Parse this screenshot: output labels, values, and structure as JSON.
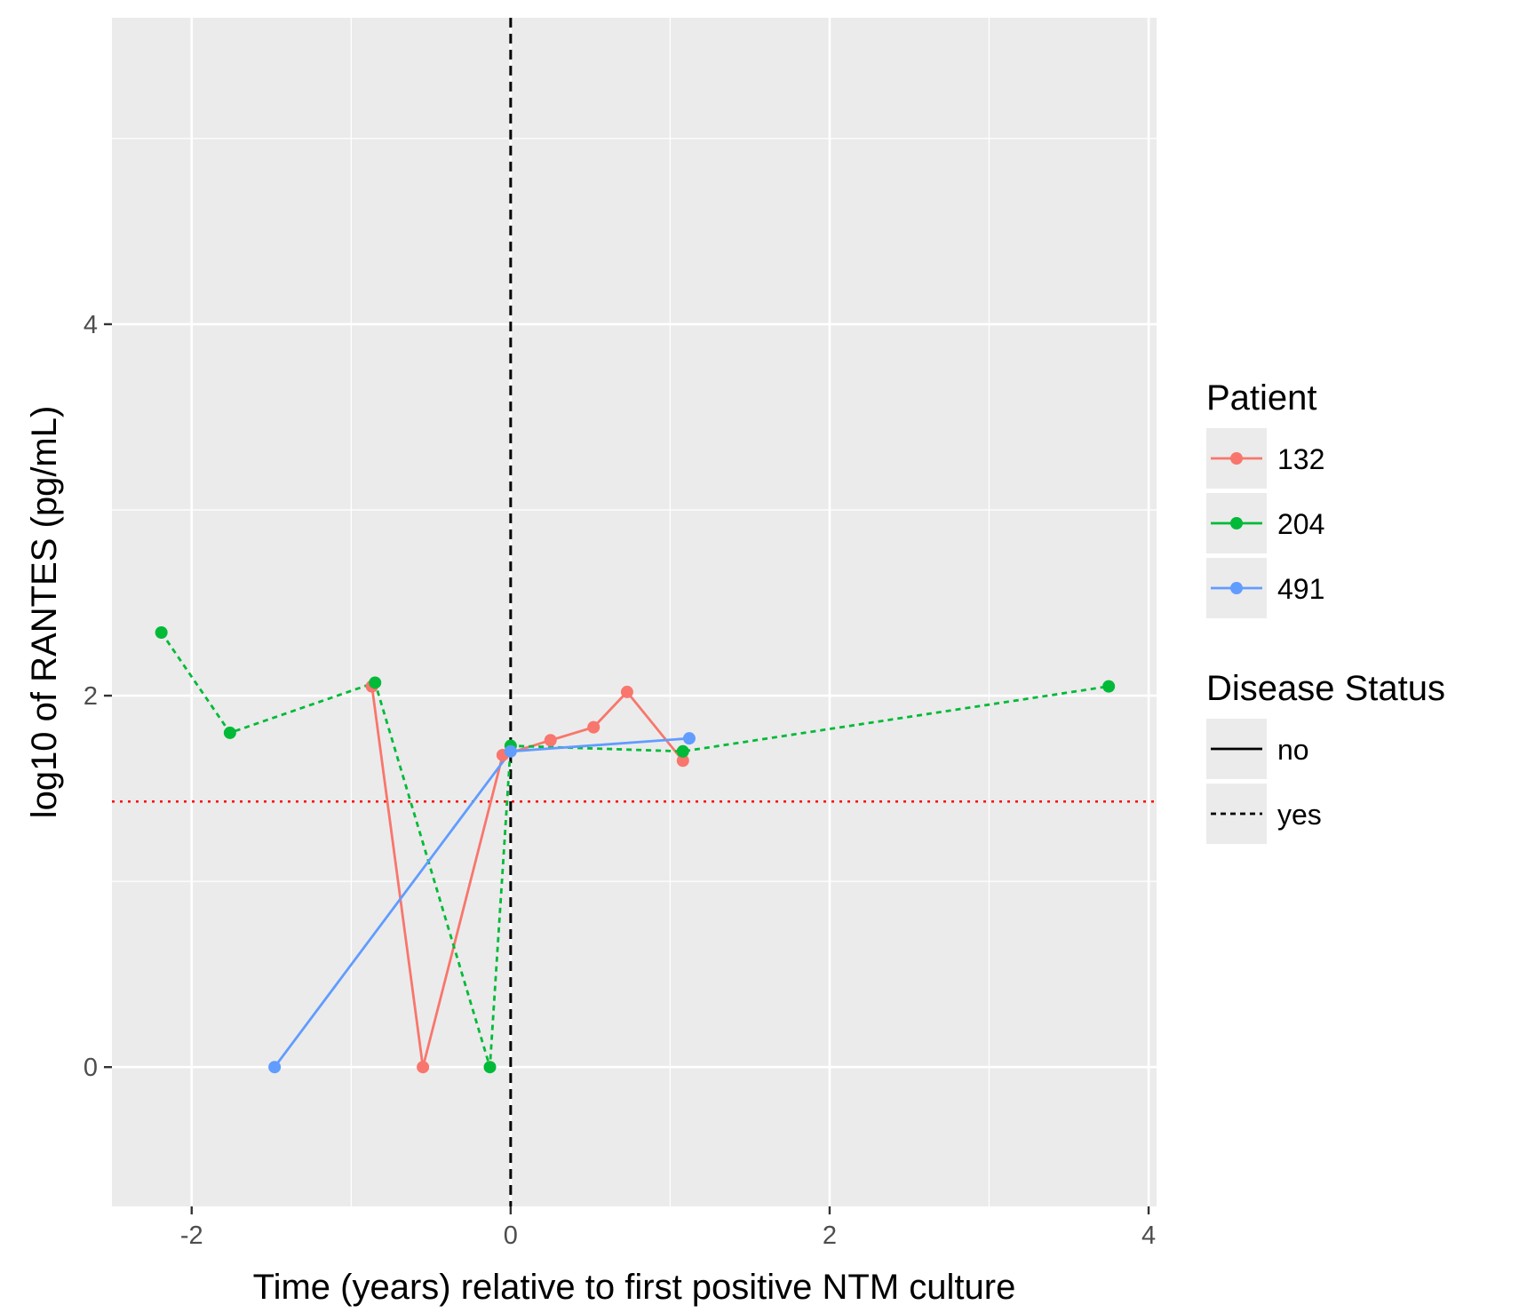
{
  "chart_data": {
    "type": "line",
    "title": "",
    "xlabel": "Time (years) relative to first positive NTM culture",
    "ylabel": "log10 of RANTES (pg/mL)",
    "xlim": [
      -2.5,
      4.05
    ],
    "ylim": [
      -0.75,
      5.65
    ],
    "x_ticks": [
      -2,
      0,
      2,
      4
    ],
    "x_tick_labels": [
      "-2",
      "0",
      "2",
      "4"
    ],
    "y_ticks": [
      0,
      2,
      4
    ],
    "y_tick_labels": [
      "0",
      "2",
      "4"
    ],
    "x_minor_grid": [
      -1,
      1,
      3
    ],
    "y_minor_grid": [
      1,
      3,
      5
    ],
    "grid": true,
    "panel_background": "#ebebeb",
    "vline": {
      "x": 0,
      "color": "#000000",
      "style": "dashed"
    },
    "hline": {
      "y": 1.43,
      "color": "#ff0000",
      "style": "dotted"
    },
    "series": [
      {
        "name": "132",
        "color": "#F8766D",
        "disease_status": "no",
        "linestyle": "solid",
        "x": [
          -0.87,
          -0.55,
          -0.05,
          0.25,
          0.52,
          0.73,
          1.08
        ],
        "y": [
          2.05,
          0.0,
          1.68,
          1.76,
          1.83,
          2.02,
          1.65
        ]
      },
      {
        "name": "204",
        "color": "#00BA38",
        "disease_status": "yes",
        "linestyle": "dotted",
        "x": [
          -2.19,
          -1.76,
          -0.85,
          -0.13,
          0.0,
          1.08,
          3.75
        ],
        "y": [
          2.34,
          1.8,
          2.07,
          0.0,
          1.73,
          1.7,
          2.05
        ]
      },
      {
        "name": "491",
        "color": "#619CFF",
        "disease_status": "no",
        "linestyle": "solid",
        "x": [
          -1.48,
          0.0,
          1.12
        ],
        "y": [
          0.0,
          1.7,
          1.77
        ]
      }
    ],
    "legend": {
      "placement": "right",
      "patient_title": "Patient",
      "patient_items": [
        "132",
        "204",
        "491"
      ],
      "status_title": "Disease Status",
      "status_items": [
        {
          "label": "no",
          "linestyle": "solid"
        },
        {
          "label": "yes",
          "linestyle": "dotted"
        }
      ],
      "key_background": "#ebebeb"
    }
  }
}
